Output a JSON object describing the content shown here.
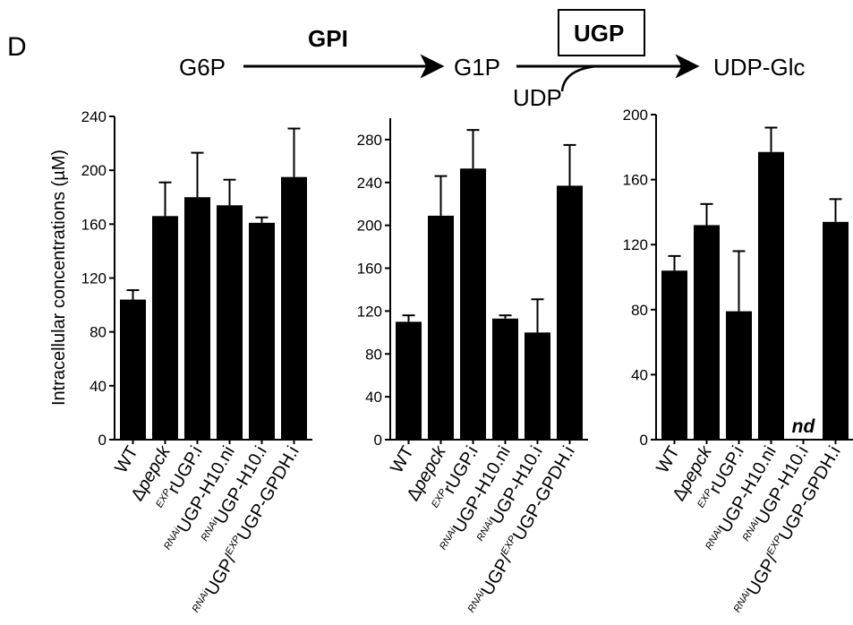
{
  "panel_label": "D",
  "pathway": {
    "metabolites": [
      "G6P",
      "G1P",
      "UDP-Glc"
    ],
    "enzymes": [
      "GPI",
      "UGP"
    ],
    "cosubstrate": "UDP"
  },
  "ylabel": "Intracellular concentrations (µM)",
  "categories": [
    {
      "prefix": "",
      "main": "WT",
      "italic_part": ""
    },
    {
      "prefix": "",
      "main": "Δ",
      "italic_part": "pepck"
    },
    {
      "prefix": "EXP",
      "main": "rUGP.i",
      "italic_part": ""
    },
    {
      "prefix": "RNAi",
      "main": "UGP-H10.ni",
      "italic_part": ""
    },
    {
      "prefix": "RNAi",
      "main": "UGP-H10.i",
      "italic_part": ""
    },
    {
      "prefix": "RNAi",
      "main": "UGP/",
      "mid_prefix": "EXP",
      "suffix": "UGP-GPDH.i",
      "italic_part": ""
    }
  ],
  "nd_label": "nd",
  "chart_data": [
    {
      "type": "bar",
      "metabolite": "G6P",
      "ylim": [
        0,
        240
      ],
      "yticks": [
        0,
        40,
        80,
        120,
        160,
        200,
        240
      ],
      "values": [
        104,
        166,
        180,
        174,
        161,
        195
      ],
      "errors": [
        7,
        25,
        33,
        19,
        4,
        36
      ],
      "bar_color": "#000000"
    },
    {
      "type": "bar",
      "metabolite": "G1P",
      "ylim": [
        0,
        300
      ],
      "yticks": [
        0,
        40,
        80,
        120,
        160,
        200,
        240,
        280
      ],
      "values": [
        110,
        209,
        253,
        113,
        100,
        237
      ],
      "errors": [
        6,
        37,
        36,
        3,
        31,
        38
      ],
      "bar_color": "#000000"
    },
    {
      "type": "bar",
      "metabolite": "UDP-Glc",
      "ylim": [
        0,
        200
      ],
      "yticks": [
        0,
        40,
        80,
        120,
        160,
        200
      ],
      "values": [
        104,
        132,
        79,
        177,
        null,
        134
      ],
      "errors": [
        9,
        13,
        37,
        15,
        null,
        14
      ],
      "not_determined_index": 4,
      "bar_color": "#000000"
    }
  ]
}
